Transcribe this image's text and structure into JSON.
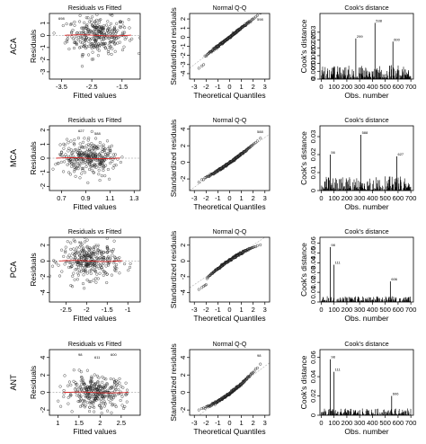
{
  "figure": {
    "panel_titles": {
      "resid": "Residuals vs Fitted",
      "qq": "Normal Q-Q",
      "cook": "Cook's distance"
    },
    "axis_labels": {
      "resid_x": "Fitted values",
      "resid_y": "Residuals",
      "qq_x": "Theoretical Quantiles",
      "qq_y": "Standardized residuals",
      "cook_x": "Obs. number",
      "cook_y": "Cook's distance"
    }
  },
  "chart_data": [
    {
      "row": "ACA",
      "panels": [
        {
          "type": "scatter",
          "title": "Residuals vs Fitted",
          "xlabel": "Fitted values",
          "ylabel": "Residuals",
          "xlim": [
            -3.9,
            -0.9
          ],
          "ylim": [
            -3.6,
            1.8
          ],
          "xticks": [
            -3.5,
            -2.5,
            -1.5
          ],
          "yticks": [
            -3,
            -2,
            -1,
            0,
            1
          ],
          "center": -2.3,
          "spread": 0.5,
          "residual_sd": 0.75,
          "point_labels": [
            "698"
          ]
        },
        {
          "type": "scatter",
          "title": "Normal Q-Q",
          "xlabel": "Theoretical Quantiles",
          "ylabel": "Standardized residuals",
          "xlim": [
            -3.4,
            3.4
          ],
          "ylim": [
            -4.6,
            2.6
          ],
          "xticks": [
            -3,
            -2,
            -1,
            0,
            1,
            2,
            3
          ],
          "yticks": [
            -4,
            -3,
            -2,
            -1,
            0,
            1,
            2
          ],
          "point_labels": [
            "598"
          ]
        },
        {
          "type": "bar",
          "title": "Cook's distance",
          "xlabel": "Obs. number",
          "ylabel": "Cook's distance",
          "xlim": [
            -10,
            720
          ],
          "ylim": [
            0,
            0.042
          ],
          "xticks": [
            0,
            100,
            200,
            300,
            400,
            500,
            600,
            700
          ],
          "yticks": [
            0,
            0.005,
            0.01,
            0.015,
            0.02,
            0.025,
            0.03
          ],
          "baseline_max": 0.009,
          "spikes": [
            {
              "x": 270,
              "y": 0.026,
              "label": "299"
            },
            {
              "x": 420,
              "y": 0.036,
              "label": "538"
            },
            {
              "x": 560,
              "y": 0.024,
              "label": "600"
            }
          ]
        }
      ]
    },
    {
      "row": "MCA",
      "panels": [
        {
          "type": "scatter",
          "title": "Residuals vs Fitted",
          "xlabel": "Fitted values",
          "ylabel": "Residuals",
          "xlim": [
            0.6,
            1.35
          ],
          "ylim": [
            -2.3,
            2.3
          ],
          "xticks": [
            0.7,
            0.9,
            1.1,
            1.3
          ],
          "yticks": [
            -2,
            -1,
            0,
            1,
            2
          ],
          "center": 0.92,
          "spread": 0.12,
          "residual_sd": 0.6,
          "point_labels": [
            "627",
            "588"
          ]
        },
        {
          "type": "scatter",
          "title": "Normal Q-Q",
          "xlabel": "Theoretical Quantiles",
          "ylabel": "Standardized residuals",
          "xlim": [
            -3.4,
            3.4
          ],
          "ylim": [
            -3.4,
            4.4
          ],
          "xticks": [
            -3,
            -2,
            -1,
            0,
            1,
            2,
            3
          ],
          "yticks": [
            -2,
            0,
            2,
            4
          ],
          "point_labels": [
            "588"
          ]
        },
        {
          "type": "bar",
          "title": "Cook's distance",
          "xlabel": "Obs. number",
          "ylabel": "Cook's distance",
          "xlim": [
            -10,
            720
          ],
          "ylim": [
            0,
            0.036
          ],
          "xticks": [
            0,
            100,
            200,
            300,
            400,
            500,
            600,
            700
          ],
          "yticks": [
            0,
            0.01,
            0.02,
            0.03
          ],
          "baseline_max": 0.008,
          "spikes": [
            {
              "x": 70,
              "y": 0.02,
              "label": "56"
            },
            {
              "x": 310,
              "y": 0.031,
              "label": "588"
            },
            {
              "x": 590,
              "y": 0.019,
              "label": "627"
            }
          ]
        }
      ]
    },
    {
      "row": "PCA",
      "panels": [
        {
          "type": "scatter",
          "title": "Residuals vs Fitted",
          "xlabel": "Fitted values",
          "ylabel": "Residuals",
          "xlim": [
            -2.9,
            -0.7
          ],
          "ylim": [
            -5.2,
            3.0
          ],
          "xticks": [
            -2.5,
            -2.0,
            -1.5,
            -1.0
          ],
          "yticks": [
            -4,
            -2,
            0,
            2
          ],
          "center": -1.9,
          "spread": 0.35,
          "residual_sd": 1.1,
          "point_labels": [
            "98",
            "111"
          ]
        },
        {
          "type": "scatter",
          "title": "Normal Q-Q",
          "xlabel": "Theoretical Quantiles",
          "ylabel": "Standardized residuals",
          "xlim": [
            -3.4,
            3.4
          ],
          "ylim": [
            -5.2,
            3.0
          ],
          "xticks": [
            -3,
            -2,
            -1,
            0,
            1,
            2,
            3
          ],
          "yticks": [
            -4,
            -2,
            0,
            2
          ],
          "point_labels": []
        },
        {
          "type": "bar",
          "title": "Cook's distance",
          "xlabel": "Obs. number",
          "ylabel": "Cook's distance",
          "xlim": [
            -10,
            720
          ],
          "ylim": [
            0,
            0.066
          ],
          "xticks": [
            0,
            100,
            200,
            300,
            400,
            500,
            600,
            700
          ],
          "yticks": [
            0,
            0.01,
            0.02,
            0.03,
            0.04,
            0.05,
            0.06
          ],
          "baseline_max": 0.006,
          "spikes": [
            {
              "x": 70,
              "y": 0.056,
              "label": "98"
            },
            {
              "x": 100,
              "y": 0.038,
              "label": "111"
            },
            {
              "x": 540,
              "y": 0.021,
              "label": "606"
            }
          ]
        }
      ]
    },
    {
      "row": "ANT",
      "panels": [
        {
          "type": "scatter",
          "title": "Residuals vs Fitted",
          "xlabel": "Fitted values",
          "ylabel": "Residuals",
          "xlim": [
            0.8,
            2.95
          ],
          "ylim": [
            -2.6,
            4.9
          ],
          "xticks": [
            1.0,
            1.5,
            2.0,
            2.5
          ],
          "yticks": [
            -2,
            0,
            2,
            4
          ],
          "center": 1.9,
          "spread": 0.35,
          "residual_sd": 0.9,
          "point_labels": [
            "98",
            "611",
            "600"
          ]
        },
        {
          "type": "scatter",
          "title": "Normal Q-Q",
          "xlabel": "Theoretical Quantiles",
          "ylabel": "Standardized residuals",
          "xlim": [
            -3.4,
            3.4
          ],
          "ylim": [
            -2.6,
            4.9
          ],
          "xticks": [
            -3,
            -2,
            -1,
            0,
            1,
            2,
            3
          ],
          "yticks": [
            -2,
            0,
            2,
            4
          ],
          "point_labels": [
            "98"
          ]
        },
        {
          "type": "bar",
          "title": "Cook's distance",
          "xlabel": "Obs. number",
          "ylabel": "Cook's distance",
          "xlim": [
            -10,
            720
          ],
          "ylim": [
            0,
            0.068
          ],
          "xticks": [
            0,
            100,
            200,
            300,
            400,
            500,
            600,
            700
          ],
          "yticks": [
            0,
            0.02,
            0.04,
            0.06
          ],
          "baseline_max": 0.007,
          "spikes": [
            {
              "x": 70,
              "y": 0.058,
              "label": "98"
            },
            {
              "x": 100,
              "y": 0.045,
              "label": "111"
            },
            {
              "x": 550,
              "y": 0.02,
              "label": "606"
            }
          ]
        }
      ]
    }
  ]
}
